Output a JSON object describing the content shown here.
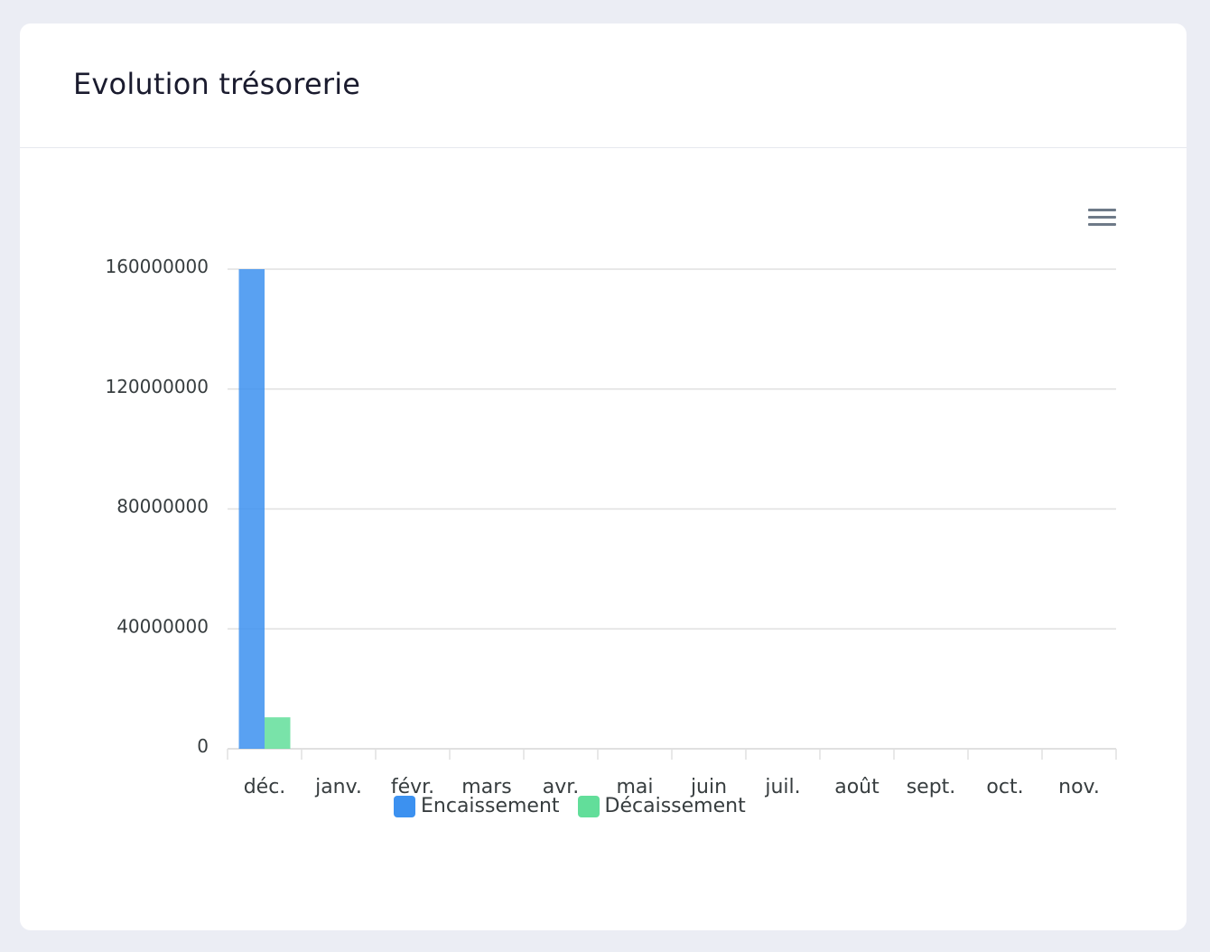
{
  "card": {
    "title": "Evolution trésorerie"
  },
  "menu": {
    "icon": "hamburger-menu-icon"
  },
  "colors": {
    "encaissement": "#3c91f0",
    "decaissement": "#62de9a"
  },
  "chart_data": {
    "type": "bar",
    "title": "",
    "xlabel": "",
    "ylabel": "",
    "categories": [
      "déc.",
      "janv.",
      "févr.",
      "mars",
      "avr.",
      "mai",
      "juin",
      "juil.",
      "août",
      "sept.",
      "oct.",
      "nov."
    ],
    "series": [
      {
        "name": "Encaissement",
        "color": "#3c91f0",
        "values": [
          160000000,
          0,
          0,
          0,
          0,
          0,
          0,
          0,
          0,
          0,
          0,
          0
        ]
      },
      {
        "name": "Décaissement",
        "color": "#62de9a",
        "values": [
          10500000,
          0,
          0,
          0,
          0,
          0,
          0,
          0,
          0,
          0,
          0,
          0
        ]
      }
    ],
    "ylim": [
      0,
      160000000
    ],
    "yticks": [
      "0",
      "40000000",
      "80000000",
      "120000000",
      "160000000"
    ],
    "grid": true,
    "legend_position": "bottom"
  }
}
